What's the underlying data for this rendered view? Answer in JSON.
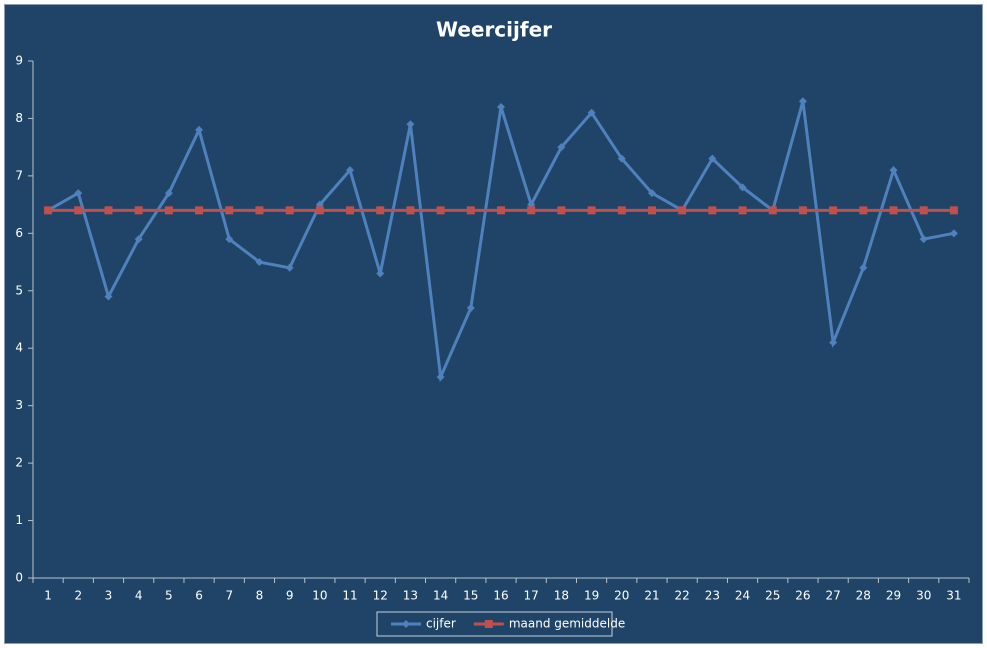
{
  "chart_data": {
    "type": "line",
    "title": "Weercijfer",
    "categories": [
      "1",
      "2",
      "3",
      "4",
      "5",
      "6",
      "7",
      "8",
      "9",
      "10",
      "11",
      "12",
      "13",
      "14",
      "15",
      "16",
      "17",
      "18",
      "19",
      "20",
      "21",
      "22",
      "23",
      "24",
      "25",
      "26",
      "27",
      "28",
      "29",
      "30",
      "31"
    ],
    "series": [
      {
        "name": "cijfer",
        "color": "#4f81bd",
        "marker": "diamond",
        "values": [
          6.4,
          6.7,
          4.9,
          5.9,
          6.7,
          7.8,
          5.9,
          5.5,
          5.4,
          6.5,
          7.1,
          5.3,
          7.9,
          3.5,
          4.7,
          8.2,
          6.5,
          7.5,
          8.1,
          7.3,
          6.7,
          6.4,
          7.3,
          6.8,
          6.4,
          8.3,
          4.1,
          5.4,
          7.1,
          5.9,
          6.0
        ]
      },
      {
        "name": "maand gemiddelde",
        "color": "#c0504d",
        "marker": "square",
        "values": [
          6.4,
          6.4,
          6.4,
          6.4,
          6.4,
          6.4,
          6.4,
          6.4,
          6.4,
          6.4,
          6.4,
          6.4,
          6.4,
          6.4,
          6.4,
          6.4,
          6.4,
          6.4,
          6.4,
          6.4,
          6.4,
          6.4,
          6.4,
          6.4,
          6.4,
          6.4,
          6.4,
          6.4,
          6.4,
          6.4,
          6.4
        ]
      }
    ],
    "ylim": [
      0,
      9
    ],
    "yticks": [
      0,
      1,
      2,
      3,
      4,
      5,
      6,
      7,
      8,
      9
    ],
    "grid": false,
    "legend": "bottom"
  }
}
